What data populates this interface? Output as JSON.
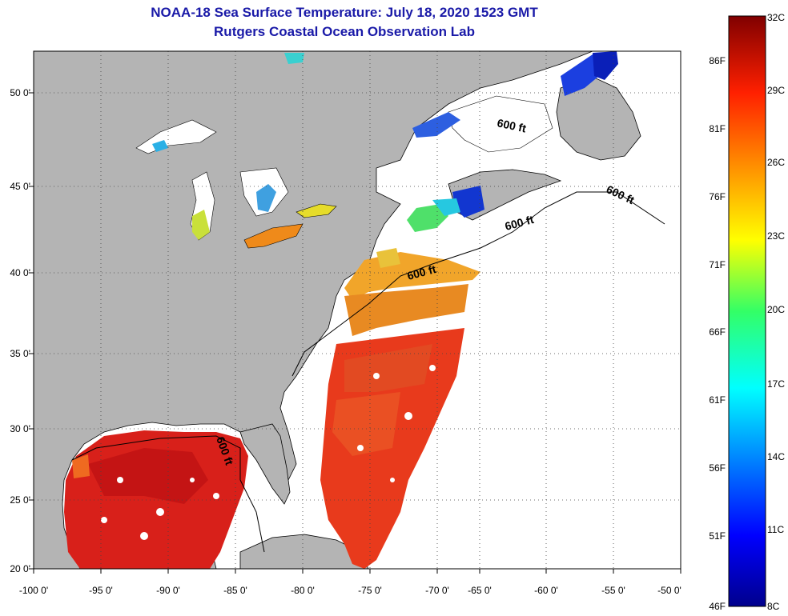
{
  "header": {
    "title": "NOAA-18 Sea Surface Temperature:  July 18, 2020 1523 GMT",
    "subtitle": "Rutgers Coastal Ocean Observation Lab"
  },
  "map": {
    "lon_labels": [
      "-100 0'",
      "-95 0'",
      "-90 0'",
      "-85 0'",
      "-80 0'",
      "-75 0'",
      "-70 0'",
      "-65 0'",
      "-60 0'",
      "-55 0'",
      "-50 0'"
    ],
    "lat_labels": [
      "50 0'",
      "45 0'",
      "40 0'",
      "35 0'",
      "30 0'",
      "25 0'",
      "20 0'"
    ],
    "contour_labels": [
      "600 ft",
      "600 ft",
      "600 ft",
      "600 ft",
      "600 ft"
    ],
    "colors": {
      "land": "#b4b4b4",
      "water": "#ffffff",
      "warm": "#e0201a",
      "hot": "#c80f12"
    }
  },
  "colorbar": {
    "celsius": [
      "32C",
      "29C",
      "26C",
      "23C",
      "20C",
      "17C",
      "14C",
      "11C",
      "8C"
    ],
    "fahrenheit": [
      "86F",
      "81F",
      "76F",
      "71F",
      "66F",
      "61F",
      "56F",
      "51F",
      "46F"
    ]
  }
}
